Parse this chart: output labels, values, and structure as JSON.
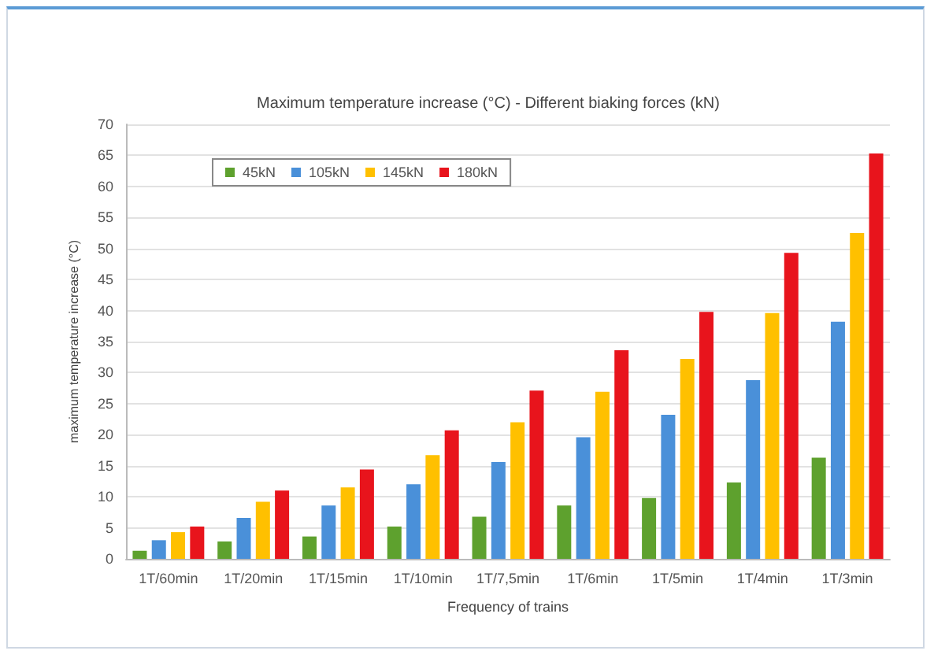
{
  "chart_data": {
    "type": "bar",
    "title": "Maximum temperature increase (°C) - Different biaking forces (kN)",
    "xlabel": "Frequency of trains",
    "ylabel": "maximum temperature increase (°C)",
    "categories": [
      "1T/60min",
      "1T/20min",
      "1T/15min",
      "1T/10min",
      "1T/7,5min",
      "1T/6min",
      "1T/5min",
      "1T/4min",
      "1T/3min"
    ],
    "series": [
      {
        "name": "45kN",
        "color": "#5ea12e",
        "values": [
          1.3,
          2.8,
          3.6,
          5.2,
          6.8,
          8.6,
          9.8,
          12.3,
          16.3
        ]
      },
      {
        "name": "105kN",
        "color": "#4a90d9",
        "values": [
          3.0,
          6.6,
          8.6,
          12.0,
          15.6,
          19.6,
          23.2,
          28.8,
          38.2
        ]
      },
      {
        "name": "145kN",
        "color": "#ffc000",
        "values": [
          4.3,
          9.2,
          11.5,
          16.7,
          22.0,
          26.9,
          32.2,
          39.6,
          52.5
        ]
      },
      {
        "name": "180kN",
        "color": "#e8141c",
        "values": [
          5.2,
          11.0,
          14.4,
          20.7,
          27.1,
          33.6,
          39.8,
          49.3,
          65.3
        ]
      }
    ],
    "ylim": [
      0,
      70
    ],
    "yticks": [
      0,
      5,
      10,
      15,
      20,
      25,
      30,
      35,
      40,
      45,
      50,
      55,
      60,
      65,
      70
    ],
    "grid": "y",
    "legend": "top left"
  }
}
